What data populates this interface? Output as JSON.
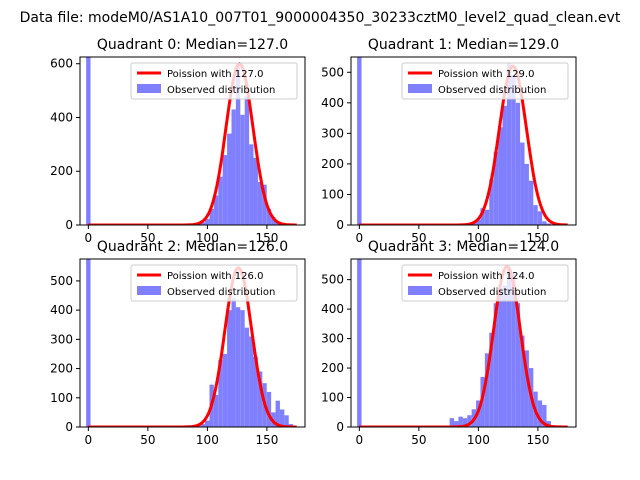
{
  "figure_title": "Data file: modeM0/AS1A10_007T01_9000004350_30233cztM0_level2_quad_clean.evt",
  "chart_data": [
    {
      "type": "bar",
      "title": "Quadrant 0: Median=127.0",
      "median": 127.0,
      "xlim": [
        -7,
        182
      ],
      "ylim": [
        0,
        625
      ],
      "xticks": [
        0,
        50,
        100,
        150
      ],
      "yticks": [
        0,
        200,
        400,
        600
      ],
      "legend_position": "upper-right",
      "legend": [
        "Poission with 127.0",
        "Observed distribution"
      ],
      "hist_bin_width": 3.7,
      "spike": {
        "x": 0,
        "value": 625
      },
      "hist": {
        "x": [
          92.5,
          96.2,
          99.9,
          103.6,
          107.3,
          111,
          114.7,
          118.4,
          122.1,
          125.8,
          129.5,
          133.2,
          136.9,
          140.6,
          144.3,
          148,
          151.7,
          155.4,
          159.1,
          162.8
        ],
        "values": [
          4,
          10,
          22,
          60,
          110,
          180,
          260,
          340,
          430,
          600,
          410,
          480,
          300,
          250,
          160,
          150,
          60,
          30,
          12,
          5
        ]
      },
      "poisson": {
        "peak": 600,
        "sigma": 11.3
      }
    },
    {
      "type": "bar",
      "title": "Quadrant 1: Median=129.0",
      "median": 129.0,
      "xlim": [
        -7,
        182
      ],
      "ylim": [
        0,
        550
      ],
      "xticks": [
        0,
        50,
        100,
        150
      ],
      "yticks": [
        0,
        100,
        200,
        300,
        400,
        500
      ],
      "legend_position": "upper-right",
      "legend": [
        "Poission with 129.0",
        "Observed distribution"
      ],
      "hist_bin_width": 3.7,
      "spike": {
        "x": 0,
        "value": 550
      },
      "hist": {
        "x": [
          92.5,
          96.2,
          99.9,
          103.6,
          107.3,
          111,
          114.7,
          118.4,
          122.1,
          125.8,
          129.5,
          133.2,
          136.9,
          140.6,
          144.3,
          148,
          151.7,
          155.4,
          159.1,
          162.8
        ],
        "values": [
          3,
          8,
          18,
          55,
          50,
          150,
          240,
          320,
          390,
          530,
          490,
          400,
          270,
          200,
          145,
          65,
          45,
          12,
          5,
          2
        ]
      },
      "poisson": {
        "peak": 520,
        "sigma": 11.4
      }
    },
    {
      "type": "bar",
      "title": "Quadrant 2: Median=126.0",
      "median": 126.0,
      "xlim": [
        -7,
        182
      ],
      "ylim": [
        0,
        575
      ],
      "xticks": [
        0,
        50,
        100,
        150
      ],
      "yticks": [
        0,
        100,
        200,
        300,
        400,
        500
      ],
      "legend_position": "upper-right",
      "legend": [
        "Poission with 126.0",
        "Observed distribution"
      ],
      "hist_bin_width": 3.7,
      "spike": {
        "x": 0,
        "value": 575
      },
      "hist": {
        "x": [
          92.5,
          96.2,
          99.9,
          103.6,
          107.3,
          111,
          114.7,
          118.4,
          122.1,
          125.8,
          129.5,
          133.2,
          136.9,
          140.6,
          144.3,
          148,
          151.7,
          155.4,
          159.1,
          162.8,
          166.5,
          170.2
        ],
        "values": [
          3,
          10,
          22,
          145,
          110,
          230,
          250,
          400,
          440,
          410,
          400,
          340,
          310,
          240,
          190,
          150,
          120,
          50,
          90,
          60,
          40,
          10
        ]
      },
      "poisson": {
        "peak": 545,
        "sigma": 11.3
      }
    },
    {
      "type": "bar",
      "title": "Quadrant 3: Median=124.0",
      "median": 124.0,
      "xlim": [
        -7,
        182
      ],
      "ylim": [
        0,
        570
      ],
      "xticks": [
        0,
        50,
        100,
        150
      ],
      "yticks": [
        0,
        100,
        200,
        300,
        400,
        500
      ],
      "legend_position": "upper-right",
      "legend": [
        "Poission with 124.0",
        "Observed distribution"
      ],
      "hist_bin_width": 3.7,
      "spike": {
        "x": 0,
        "value": 570
      },
      "hist": {
        "x": [
          77.7,
          81.4,
          85.1,
          88.8,
          92.5,
          96.2,
          99.9,
          103.6,
          107.3,
          111,
          114.7,
          118.4,
          122.1,
          125.8,
          129.5,
          133.2,
          136.9,
          140.6,
          144.3,
          148,
          151.7,
          155.4,
          159.1
        ],
        "values": [
          30,
          20,
          35,
          30,
          40,
          60,
          90,
          170,
          250,
          320,
          420,
          470,
          480,
          540,
          520,
          420,
          310,
          260,
          200,
          120,
          90,
          75,
          20
        ]
      },
      "poisson": {
        "peak": 545,
        "sigma": 11.2
      }
    }
  ]
}
